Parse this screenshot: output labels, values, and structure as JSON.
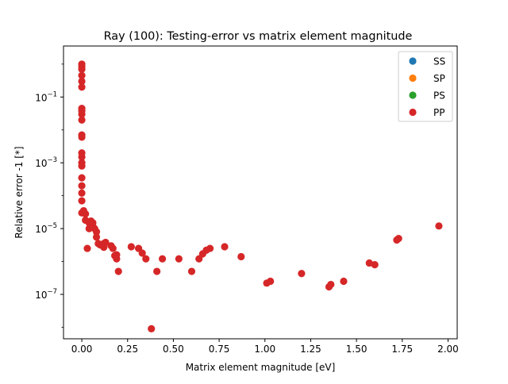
{
  "chart_data": {
    "type": "scatter",
    "title": "Ray (100): Testing-error vs matrix element magnitude",
    "xlabel": "Matrix element magnitude [eV]",
    "ylabel": "Relative error -1 [*]",
    "xlim": [
      -0.1,
      2.05
    ],
    "ylim_log10": [
      -8.35,
      0.55
    ],
    "yscale": "log",
    "grid": false,
    "legend_position": "top-right",
    "x_ticks": [
      {
        "value": 0.0,
        "label": "0.00"
      },
      {
        "value": 0.25,
        "label": "0.25"
      },
      {
        "value": 0.5,
        "label": "0.50"
      },
      {
        "value": 0.75,
        "label": "0.75"
      },
      {
        "value": 1.0,
        "label": "1.00"
      },
      {
        "value": 1.25,
        "label": "1.25"
      },
      {
        "value": 1.5,
        "label": "1.50"
      },
      {
        "value": 1.75,
        "label": "1.75"
      },
      {
        "value": 2.0,
        "label": "2.00"
      }
    ],
    "y_ticks": [
      {
        "value": -1,
        "base": "10",
        "exp": "−1"
      },
      {
        "value": -3,
        "base": "10",
        "exp": "−3"
      },
      {
        "value": -5,
        "base": "10",
        "exp": "−5"
      },
      {
        "value": -7,
        "base": "10",
        "exp": "−7"
      }
    ],
    "y_minor_ticks": [
      -8,
      -6,
      -4,
      -2,
      0
    ],
    "series": [
      {
        "name": "SS",
        "color": "#1f77b4",
        "points": []
      },
      {
        "name": "SP",
        "color": "#ff7f0e",
        "points": []
      },
      {
        "name": "PS",
        "color": "#2ca02c",
        "points": []
      },
      {
        "name": "PP",
        "color": "#d62728",
        "points": [
          [
            0.0,
            1.0
          ],
          [
            0.0,
            0.85
          ],
          [
            0.0,
            0.7
          ],
          [
            0.0,
            0.45
          ],
          [
            0.0,
            0.3
          ],
          [
            0.0,
            0.2
          ],
          [
            0.0,
            0.045
          ],
          [
            0.0,
            0.038
          ],
          [
            0.0,
            0.03
          ],
          [
            0.0,
            0.02
          ],
          [
            0.0,
            0.007
          ],
          [
            0.0,
            0.006
          ],
          [
            0.0,
            0.002
          ],
          [
            0.0,
            0.0015
          ],
          [
            0.0,
            0.001
          ],
          [
            0.0,
            0.0008
          ],
          [
            0.0,
            0.00035
          ],
          [
            0.0,
            0.0002
          ],
          [
            0.0,
            0.00012
          ],
          [
            0.0,
            7e-05
          ],
          [
            0.0,
            3e-05
          ],
          [
            0.01,
            3.5e-05
          ],
          [
            0.02,
            2.8e-05
          ],
          [
            0.02,
            1.8e-05
          ],
          [
            0.03,
            2.5e-06
          ],
          [
            0.04,
            1.5e-05
          ],
          [
            0.04,
            1e-05
          ],
          [
            0.05,
            1.7e-05
          ],
          [
            0.06,
            1.5e-05
          ],
          [
            0.06,
            1.2e-05
          ],
          [
            0.07,
            1e-05
          ],
          [
            0.08,
            8e-06
          ],
          [
            0.08,
            5.5e-06
          ],
          [
            0.09,
            3.5e-06
          ],
          [
            0.1,
            3.2e-06
          ],
          [
            0.12,
            2.7e-06
          ],
          [
            0.12,
            3.5e-06
          ],
          [
            0.13,
            3.8e-06
          ],
          [
            0.16,
            3e-06
          ],
          [
            0.17,
            2.5e-06
          ],
          [
            0.18,
            1.5e-06
          ],
          [
            0.19,
            1.2e-06
          ],
          [
            0.19,
            1.6e-06
          ],
          [
            0.2,
            5e-07
          ],
          [
            0.27,
            2.8e-06
          ],
          [
            0.31,
            2.5e-06
          ],
          [
            0.33,
            1.8e-06
          ],
          [
            0.35,
            1.2e-06
          ],
          [
            0.38,
            9e-09
          ],
          [
            0.41,
            5e-07
          ],
          [
            0.44,
            1.2e-06
          ],
          [
            0.53,
            1.2e-06
          ],
          [
            0.6,
            5e-07
          ],
          [
            0.64,
            1.2e-06
          ],
          [
            0.66,
            1.7e-06
          ],
          [
            0.68,
            2.2e-06
          ],
          [
            0.7,
            2.5e-06
          ],
          [
            0.78,
            2.8e-06
          ],
          [
            0.87,
            1.4e-06
          ],
          [
            1.01,
            2.2e-07
          ],
          [
            1.03,
            2.5e-07
          ],
          [
            1.2,
            4.3e-07
          ],
          [
            1.35,
            1.7e-07
          ],
          [
            1.36,
            2e-07
          ],
          [
            1.43,
            2.5e-07
          ],
          [
            1.57,
            9e-07
          ],
          [
            1.6,
            8e-07
          ],
          [
            1.72,
            4.5e-06
          ],
          [
            1.73,
            5e-06
          ],
          [
            1.95,
            1.2e-05
          ]
        ]
      }
    ]
  }
}
